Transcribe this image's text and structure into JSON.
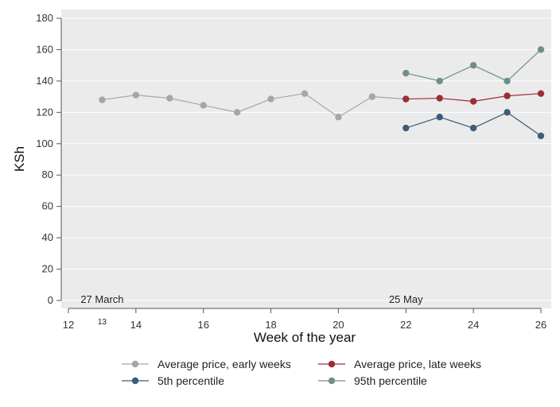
{
  "chart_data": {
    "type": "line",
    "xlabel": "Week of the year",
    "ylabel": "KSh",
    "xlim": [
      12,
      26
    ],
    "ylim": [
      0,
      180
    ],
    "x_ticks": [
      12,
      14,
      16,
      18,
      20,
      22,
      24,
      26
    ],
    "y_ticks": [
      0,
      20,
      40,
      60,
      80,
      100,
      120,
      140,
      160,
      180
    ],
    "grid": "horizontal",
    "legend_position": "bottom",
    "series": [
      {
        "name": "Average price, early weeks",
        "color": "#a6a6a6",
        "points": [
          [
            13,
            128
          ],
          [
            14,
            131
          ],
          [
            15,
            129
          ],
          [
            16,
            124.5
          ],
          [
            17,
            120
          ],
          [
            18,
            128.5
          ],
          [
            19,
            132
          ],
          [
            20,
            117
          ],
          [
            21,
            130
          ],
          [
            22,
            128.5
          ]
        ]
      },
      {
        "name": "Average price, late weeks",
        "color": "#9b2d35",
        "points": [
          [
            22,
            128.5
          ],
          [
            23,
            129
          ],
          [
            24,
            127
          ],
          [
            25,
            130.5
          ],
          [
            26,
            132
          ]
        ]
      },
      {
        "name": "5th percentile",
        "color": "#3e5c78",
        "points": [
          [
            22,
            110
          ],
          [
            23,
            117
          ],
          [
            24,
            110
          ],
          [
            25,
            120
          ],
          [
            26,
            105
          ]
        ]
      },
      {
        "name": "95th percentile",
        "color": "#6f8f86",
        "points": [
          [
            22,
            145
          ],
          [
            23,
            140
          ],
          [
            24,
            150
          ],
          [
            25,
            140
          ],
          [
            26,
            160
          ]
        ]
      }
    ],
    "annotations": [
      {
        "text": "27 March",
        "x": 13,
        "y": 0
      },
      {
        "text": "25 May",
        "x": 22,
        "y": 0
      }
    ],
    "extra_tick_labels": [
      {
        "text": "13",
        "x": 13
      }
    ]
  }
}
